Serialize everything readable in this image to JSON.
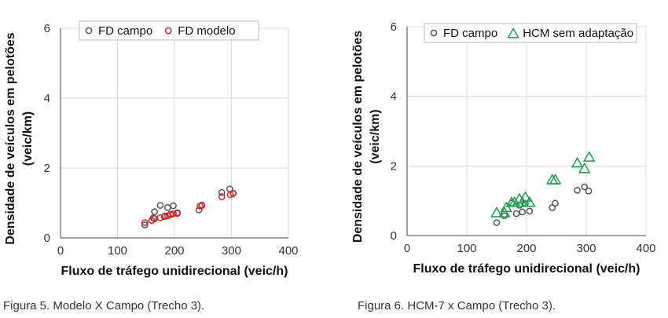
{
  "captions": [
    "Figura 5. Modelo X Campo (Trecho 3).",
    "Figura 6. HCM-7 x Campo (Trecho 3)."
  ],
  "chart_data": [
    {
      "type": "scatter",
      "xlabel": "Fluxo de tráfego unidirecional (veic/h)",
      "ylabel": [
        "Densidade de veículos em pelotões",
        "(veic/km)"
      ],
      "xlim": [
        0,
        400
      ],
      "ylim": [
        0,
        6
      ],
      "xticks": [
        0,
        100,
        200,
        300,
        400
      ],
      "yticks": [
        0,
        2,
        4,
        6
      ],
      "grid": "vertical and horizontal",
      "legend_position": "top-center",
      "series": [
        {
          "name": "FD campo",
          "marker": "circle",
          "color": "#555555",
          "points": [
            [
              148,
              0.37
            ],
            [
              163,
              0.57
            ],
            [
              165,
              0.75
            ],
            [
              175,
              0.93
            ],
            [
              183,
              0.63
            ],
            [
              188,
              0.87
            ],
            [
              193,
              0.68
            ],
            [
              198,
              0.92
            ],
            [
              205,
              0.7
            ],
            [
              243,
              0.8
            ],
            [
              248,
              0.93
            ],
            [
              283,
              1.3
            ],
            [
              297,
              1.4
            ],
            [
              303,
              1.28
            ]
          ]
        },
        {
          "name": "FD modelo",
          "marker": "circle",
          "color": "#e01e1e",
          "points": [
            [
              148,
              0.44
            ],
            [
              160,
              0.5
            ],
            [
              165,
              0.55
            ],
            [
              175,
              0.58
            ],
            [
              182,
              0.61
            ],
            [
              188,
              0.63
            ],
            [
              193,
              0.67
            ],
            [
              198,
              0.69
            ],
            [
              205,
              0.72
            ],
            [
              245,
              0.91
            ],
            [
              248,
              0.94
            ],
            [
              283,
              1.18
            ],
            [
              298,
              1.24
            ],
            [
              303,
              1.27
            ]
          ]
        }
      ]
    },
    {
      "type": "scatter",
      "xlabel": "Fluxo de tráfego unidirecional (veic/h)",
      "ylabel": [
        "Densidade de veículos em pelotões",
        "(veic/km)"
      ],
      "xlim": [
        0,
        400
      ],
      "ylim": [
        0,
        6
      ],
      "xticks": [
        0,
        100,
        200,
        300,
        400
      ],
      "yticks": [
        0,
        2,
        4,
        6
      ],
      "grid": "vertical and horizontal",
      "legend_position": "top-center",
      "series": [
        {
          "name": "FD campo",
          "marker": "circle",
          "color": "#555555",
          "points": [
            [
              150,
              0.37
            ],
            [
              163,
              0.57
            ],
            [
              175,
              0.93
            ],
            [
              183,
              0.63
            ],
            [
              188,
              0.87
            ],
            [
              193,
              0.68
            ],
            [
              198,
              0.92
            ],
            [
              205,
              0.7
            ],
            [
              243,
              0.8
            ],
            [
              248,
              0.93
            ],
            [
              285,
              1.3
            ],
            [
              297,
              1.4
            ],
            [
              304,
              1.28
            ]
          ]
        },
        {
          "name": "HCM sem adaptação",
          "marker": "triangle",
          "color": "#1aa04a",
          "points": [
            [
              150,
              0.65
            ],
            [
              163,
              0.65
            ],
            [
              166,
              0.8
            ],
            [
              175,
              0.95
            ],
            [
              180,
              0.95
            ],
            [
              188,
              1.05
            ],
            [
              193,
              0.95
            ],
            [
              198,
              1.1
            ],
            [
              205,
              0.95
            ],
            [
              243,
              1.6
            ],
            [
              248,
              1.6
            ],
            [
              285,
              2.08
            ],
            [
              297,
              1.92
            ],
            [
              305,
              2.25
            ]
          ]
        }
      ]
    }
  ]
}
